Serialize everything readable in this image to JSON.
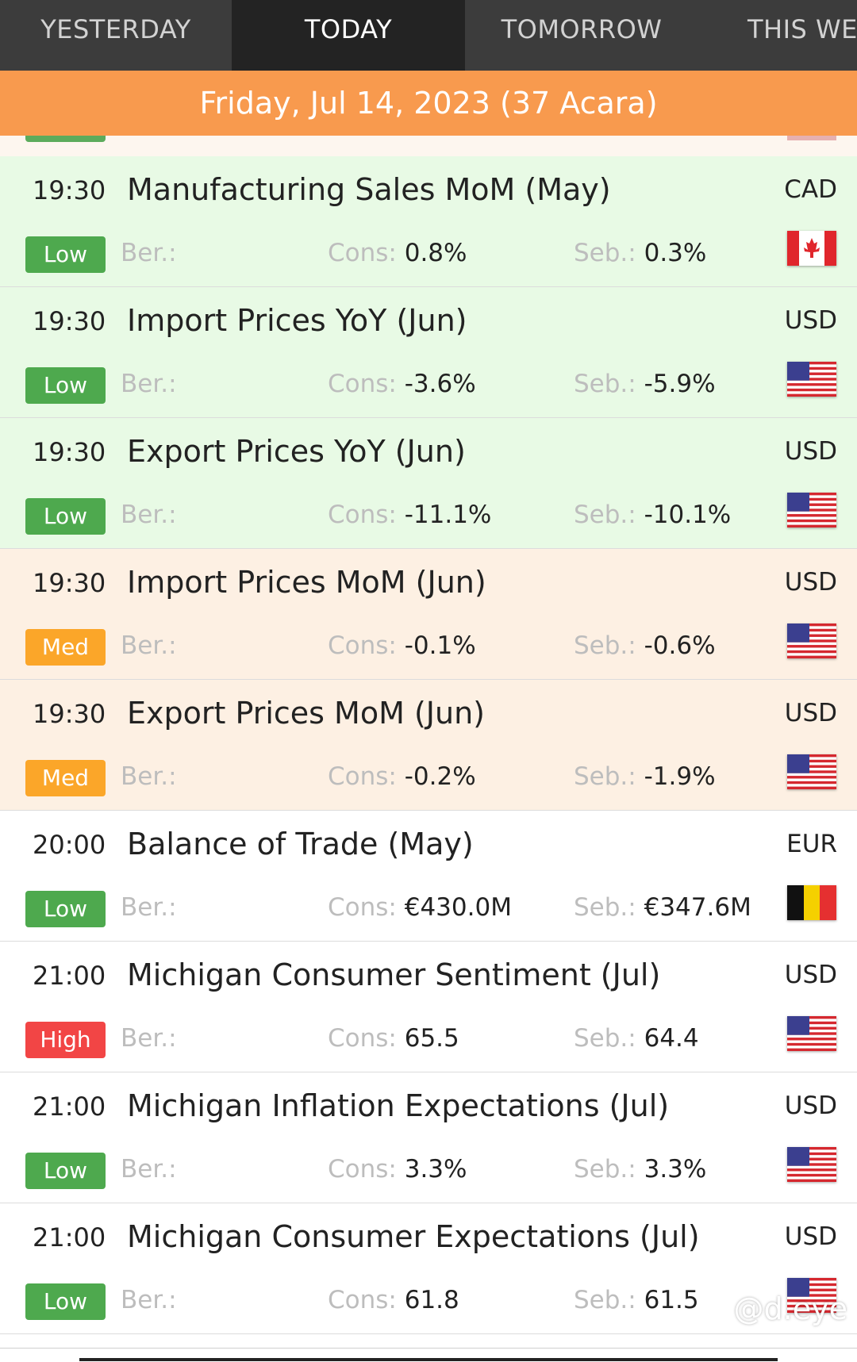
{
  "tabs": [
    {
      "label": "YESTERDAY",
      "active": false
    },
    {
      "label": "TODAY",
      "active": true
    },
    {
      "label": "TOMORROW",
      "active": false
    },
    {
      "label": "THIS WEEK",
      "active": false
    }
  ],
  "date_banner": "Friday, Jul 14, 2023 (37 Acara)",
  "field_labels": {
    "actual": "Ber.:",
    "consensus": "Cons:",
    "previous": "Seb.:"
  },
  "events": [
    {
      "time": "19:30",
      "title": "Manufacturing Sales MoM (May)",
      "currency": "CAD",
      "importance": "Low",
      "actual": "",
      "consensus": "0.8%",
      "previous": "0.3%",
      "flag": "canada-flag-icon"
    },
    {
      "time": "19:30",
      "title": "Import Prices YoY (Jun)",
      "currency": "USD",
      "importance": "Low",
      "actual": "",
      "consensus": "-3.6%",
      "previous": "-5.9%",
      "flag": "us-flag-icon"
    },
    {
      "time": "19:30",
      "title": "Export Prices YoY (Jun)",
      "currency": "USD",
      "importance": "Low",
      "actual": "",
      "consensus": "-11.1%",
      "previous": "-10.1%",
      "flag": "us-flag-icon"
    },
    {
      "time": "19:30",
      "title": "Import Prices MoM (Jun)",
      "currency": "USD",
      "importance": "Med",
      "actual": "",
      "consensus": "-0.1%",
      "previous": "-0.6%",
      "flag": "us-flag-icon"
    },
    {
      "time": "19:30",
      "title": "Export Prices MoM (Jun)",
      "currency": "USD",
      "importance": "Med",
      "actual": "",
      "consensus": "-0.2%",
      "previous": "-1.9%",
      "flag": "us-flag-icon"
    },
    {
      "time": "20:00",
      "title": "Balance of Trade (May)",
      "currency": "EUR",
      "importance": "Low",
      "actual": "",
      "consensus": "€430.0M",
      "previous": "€347.6M",
      "flag": "belgium-flag-icon"
    },
    {
      "time": "21:00",
      "title": "Michigan Consumer Sentiment (Jul)",
      "currency": "USD",
      "importance": "High",
      "actual": "",
      "consensus": "65.5",
      "previous": "64.4",
      "flag": "us-flag-icon"
    },
    {
      "time": "21:00",
      "title": "Michigan Inflation Expectations (Jul)",
      "currency": "USD",
      "importance": "Low",
      "actual": "",
      "consensus": "3.3%",
      "previous": "3.3%",
      "flag": "us-flag-icon"
    },
    {
      "time": "21:00",
      "title": "Michigan Consumer Expectations (Jul)",
      "currency": "USD",
      "importance": "Low",
      "actual": "",
      "consensus": "61.8",
      "previous": "61.5",
      "flag": "us-flag-icon"
    }
  ],
  "row_styles": [
    "imp-low",
    "imp-low",
    "imp-low",
    "imp-med",
    "imp-med",
    "neutral",
    "neutral",
    "neutral",
    "neutral"
  ],
  "watermark": "@d.eye"
}
